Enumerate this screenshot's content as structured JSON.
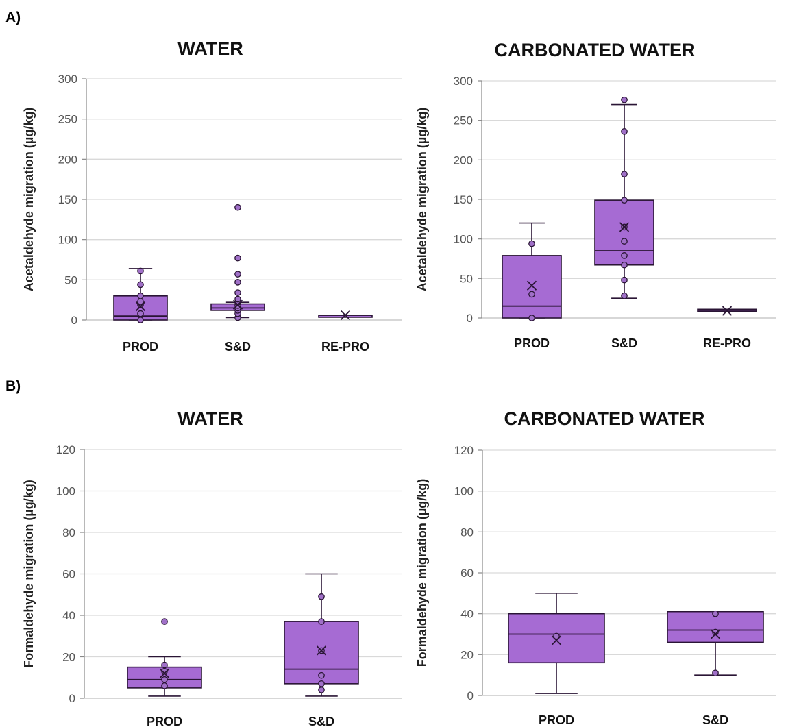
{
  "panels": {
    "A": "A)",
    "B": "B)"
  },
  "colors": {
    "box_fill": "#a66bd3",
    "box_stroke": "#2a1535",
    "point_fill": "#a070c8",
    "grid": "#d9d9d9"
  },
  "chart_data": [
    {
      "type": "box",
      "title": "WATER",
      "ylabel": "Acetaldehyde migration (µg/kg)",
      "ylim": [
        0,
        300
      ],
      "yticks": [
        0,
        50,
        100,
        150,
        200,
        250,
        300
      ],
      "grid": true,
      "categories": [
        "PROD",
        "S&D",
        "RE-PRO"
      ],
      "boxes": [
        {
          "category": "PROD",
          "min": 0,
          "q1": 0,
          "median": 5,
          "q3": 30,
          "max": 64,
          "mean": 17,
          "points": [
            0,
            8,
            19,
            23,
            30,
            44,
            61
          ]
        },
        {
          "category": "S&D",
          "min": 3,
          "q1": 12,
          "median": 15,
          "q3": 20,
          "max": 22,
          "mean": 19,
          "points": [
            3,
            8,
            12,
            15,
            18,
            22,
            26,
            34,
            47,
            57,
            77,
            140
          ]
        },
        {
          "category": "RE-PRO",
          "min": 6,
          "q1": 6,
          "median": 6,
          "q3": 6,
          "max": 6,
          "mean": 6,
          "points": []
        }
      ]
    },
    {
      "type": "box",
      "title": "CARBONATED WATER",
      "ylabel": "Acetaldehyde migration (µg/kg)",
      "ylim": [
        0,
        300
      ],
      "yticks": [
        0,
        50,
        100,
        150,
        200,
        250,
        300
      ],
      "grid": true,
      "categories": [
        "PROD",
        "S&D",
        "RE-PRO"
      ],
      "boxes": [
        {
          "category": "PROD",
          "min": 0,
          "q1": 0,
          "median": 15,
          "q3": 79,
          "max": 120,
          "mean": 41,
          "points": [
            0,
            30,
            94
          ]
        },
        {
          "category": "S&D",
          "min": 25,
          "q1": 67,
          "median": 85,
          "q3": 149,
          "max": 270,
          "mean": 115,
          "points": [
            28,
            48,
            67,
            79,
            97,
            115,
            149,
            182,
            236,
            276
          ]
        },
        {
          "category": "RE-PRO",
          "min": 9,
          "q1": 9,
          "median": 10,
          "q3": 11,
          "max": 11,
          "mean": 9,
          "points": []
        }
      ]
    },
    {
      "type": "box",
      "title": "WATER",
      "ylabel": "Formaldehyde migration (µg/kg)",
      "ylim": [
        0,
        120
      ],
      "yticks": [
        0,
        20,
        40,
        60,
        80,
        100,
        120
      ],
      "grid": true,
      "categories": [
        "PROD",
        "S&D"
      ],
      "boxes": [
        {
          "category": "PROD",
          "min": 1,
          "q1": 5,
          "median": 9,
          "q3": 15,
          "max": 20,
          "mean": 12,
          "points": [
            6,
            9,
            13,
            16,
            37
          ]
        },
        {
          "category": "S&D",
          "min": 1,
          "q1": 7,
          "median": 14,
          "q3": 37,
          "max": 60,
          "mean": 23,
          "points": [
            4,
            7,
            11,
            23,
            37,
            49
          ]
        }
      ]
    },
    {
      "type": "box",
      "title": "CARBONATED WATER",
      "ylabel": "Formaldehyde migration (µg/kg)",
      "ylim": [
        0,
        120
      ],
      "yticks": [
        0,
        20,
        40,
        60,
        80,
        100,
        120
      ],
      "grid": true,
      "categories": [
        "PROD",
        "S&D"
      ],
      "boxes": [
        {
          "category": "PROD",
          "min": 1,
          "q1": 16,
          "median": 30,
          "q3": 40,
          "max": 50,
          "mean": 27,
          "points": [
            29
          ]
        },
        {
          "category": "S&D",
          "min": 10,
          "q1": 26,
          "median": 32,
          "q3": 41,
          "max": 41,
          "mean": 30,
          "points": [
            11,
            31,
            40
          ]
        }
      ]
    }
  ]
}
